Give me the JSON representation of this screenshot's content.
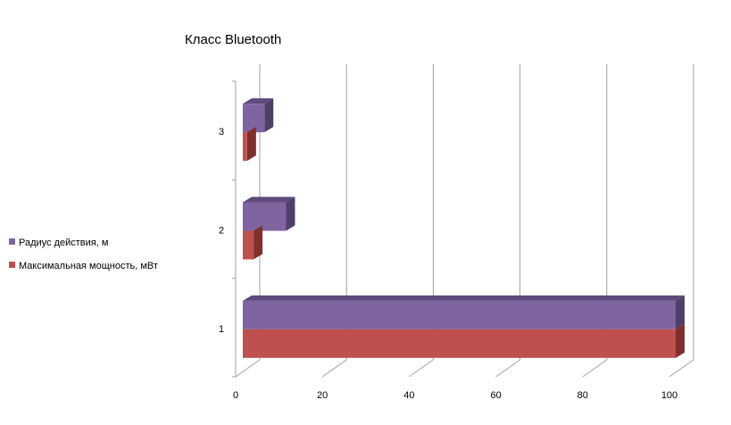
{
  "chart_data": {
    "type": "bar",
    "orientation": "horizontal",
    "style": "3d-clustered",
    "title": "Класс Bluetooth",
    "categories": [
      "1",
      "2",
      "3"
    ],
    "series": [
      {
        "name": "Максимальная мощность, мВт",
        "values": [
          100,
          2.5,
          1
        ],
        "color": "#c0504d",
        "side_color": "#7f2f2d"
      },
      {
        "name": "Радиус действия, м",
        "values": [
          100,
          10,
          5
        ],
        "color": "#8064a2",
        "side_color": "#4f3f68",
        "top_color": "#5e4a7c"
      }
    ],
    "xlim": [
      0,
      100
    ],
    "xticks": [
      "0",
      "20",
      "40",
      "60",
      "80",
      "100"
    ],
    "grid": true,
    "legend_position": "left"
  }
}
